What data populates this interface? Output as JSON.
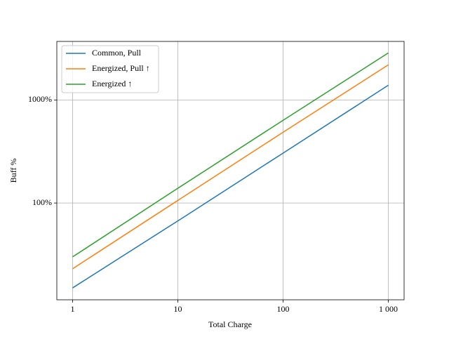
{
  "chart_data": {
    "type": "line",
    "x_label": "Total Charge",
    "y_label": "Buff %",
    "x": [
      1,
      10,
      100,
      1000
    ],
    "series": [
      {
        "name": "Common, Pull",
        "color": "#1f77b4",
        "values": [
          15,
          67,
          305,
          1390
        ]
      },
      {
        "name": "Energized, Pull ↑",
        "color": "#ff7f0e",
        "values": [
          23,
          106,
          486,
          2190
        ]
      },
      {
        "name": "Energized ↑",
        "color": "#2ca02c",
        "values": [
          30,
          139,
          635,
          2860
        ]
      }
    ],
    "x_log": true,
    "y_log": true,
    "xlim": [
      0.708,
      1413
    ],
    "ylim": [
      11.5,
      3700
    ],
    "xticks": [
      1,
      10,
      100,
      {
        "value": 1000,
        "label": "1 000"
      }
    ],
    "yticks": [
      {
        "value": 100,
        "label": "100%"
      },
      {
        "value": 1000,
        "label": "1000%"
      }
    ],
    "grid": true,
    "legend": "upper left"
  }
}
